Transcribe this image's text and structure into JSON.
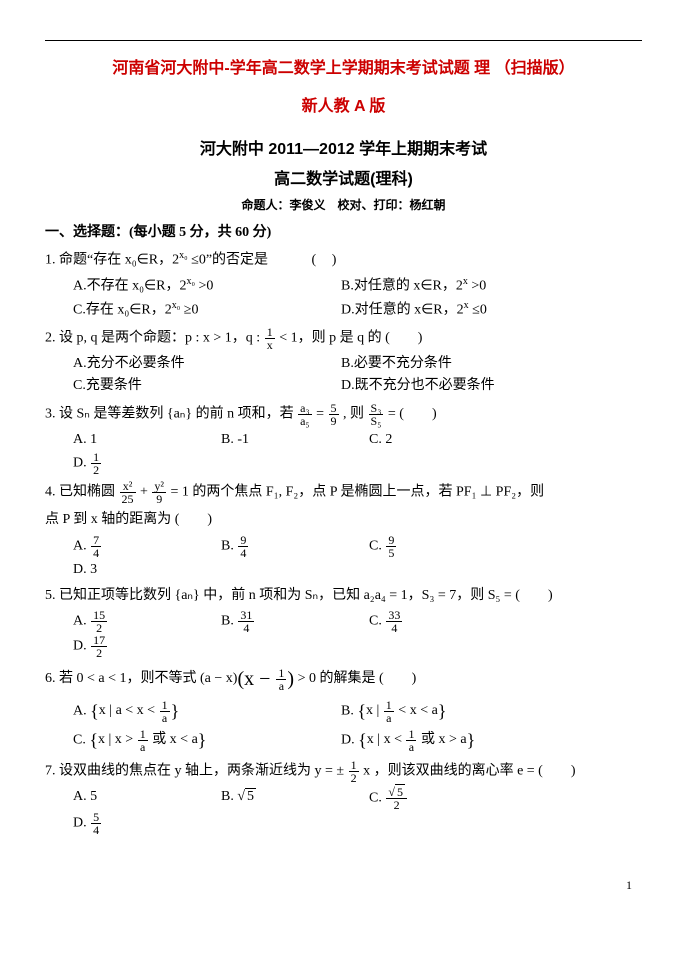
{
  "colors": {
    "accent": "#cc0000",
    "text": "#000000",
    "bg": "#ffffff"
  },
  "title_line1": "河南省河大附中-学年高二数学上学期期末考试试题 理 （扫描版）",
  "title_line2": "新人教 A 版",
  "heading1": "河大附中 2011—2012 学年上期期末考试",
  "heading2": "高二数学试题(理科)",
  "byline": "命题人：李俊义　校对、打印：杨红朝",
  "section1": "一、选择题：(每小题 5 分，共 60 分)",
  "q1": {
    "stem_a": "1. 命题“存在 x₀∈R，2",
    "stem_exp": "x₀",
    "stem_b": " ≤0”的否定是",
    "A_a": "A.不存在 x₀∈R，2",
    "A_exp": "x₀",
    "A_b": " >0",
    "B_a": "B.对任意的 x∈R，2",
    "B_exp": "x",
    "B_b": " >0",
    "C_a": "C.存在 x₀∈R，2",
    "C_exp": "x₀",
    "C_b": " ≥0",
    "D_a": "D.对任意的 x∈R，2",
    "D_exp": "x",
    "D_b": " ≤0"
  },
  "q2": {
    "stem_a": "2. 设 p, q 是两个命题：p : x > 1，q : ",
    "stem_b": " < 1，则 p 是 q 的 (　　)",
    "frac_num": "1",
    "frac_den": "x",
    "A": "A.充分不必要条件",
    "B": "B.必要不充分条件",
    "C": "C.充要条件",
    "D": "D.既不充分也不必要条件"
  },
  "q3": {
    "stem_a": "3. 设 Sₙ 是等差数列 {aₙ} 的前 n 项和，若 ",
    "f1n": "a₃",
    "f1d": "a₅",
    "eq": " = ",
    "f2n": "5",
    "f2d": "9",
    "stem_b": " , 则 ",
    "f3n": "S₃",
    "f3d": "S₅",
    "stem_c": " = (　　)",
    "A": "A. 1",
    "B": "B. -1",
    "C": "C. 2",
    "D_pre": "D. ",
    "Dn": "1",
    "Dd": "2"
  },
  "q4": {
    "stem_a": "4. 已知椭圆 ",
    "f1n": "x²",
    "f1d": "25",
    "plus": " + ",
    "f2n": "y²",
    "f2d": "9",
    "stem_b": " = 1 的两个焦点 F₁, F₂，点 P 是椭圆上一点，若 PF₁ ⊥ PF₂，则",
    "stem_c": "点 P 到 x 轴的距离为 (　　)",
    "A_pre": "A. ",
    "An": "7",
    "Ad": "4",
    "B_pre": "B. ",
    "Bn": "9",
    "Bd": "4",
    "C_pre": "C. ",
    "Cn": "9",
    "Cd": "5",
    "D": "D. 3"
  },
  "q5": {
    "stem": "5. 已知正项等比数列 {aₙ} 中，前 n 项和为 Sₙ，已知 a₂a₄ = 1，S₃ = 7，则 S₅ = (　　)",
    "A_pre": "A. ",
    "An": "15",
    "Ad": "2",
    "B_pre": "B. ",
    "Bn": "31",
    "Bd": "4",
    "C_pre": "C. ",
    "Cn": "33",
    "Cd": "4",
    "D_pre": "D. ",
    "Dn": "17",
    "Dd": "2"
  },
  "q6": {
    "stem_a": "6. 若 0 < a < 1，则不等式 (a − x)",
    "bign": "1",
    "bigd": "a",
    "stem_b": " > 0 的解集是 (　　)",
    "A_pre": "A. ",
    "A_cond_a": "x | a < x < ",
    "An": "1",
    "Ad": "a",
    "B_pre": "B. ",
    "B_cond_a": "x | ",
    "Bn": "1",
    "Bd": "a",
    "B_cond_b": " < x < a",
    "C_pre": "C. ",
    "C_cond_a": "x | x > ",
    "Cn": "1",
    "Cd": "a",
    "C_cond_b": " 或 x < a",
    "D_pre": "D. ",
    "D_cond_a": "x | x < ",
    "Dn": "1",
    "Dd": "a",
    "D_cond_b": " 或 x > a",
    "lpar": "(x − ",
    "rpar": ")"
  },
  "q7": {
    "stem_a": "7. 设双曲线的焦点在 y 轴上，两条渐近线为 y = ± ",
    "fn": "1",
    "fd": "2",
    "stem_b": " x ，则该双曲线的离心率 e = (　　)",
    "A": "A. 5",
    "B_pre": "B. ",
    "B_sqrt": "5",
    "C_pre": "C. ",
    "Cn_sqrt": "5",
    "Cd": "2",
    "D_pre": "D. ",
    "Dn": "5",
    "Dd": "4"
  },
  "page_num": "1"
}
